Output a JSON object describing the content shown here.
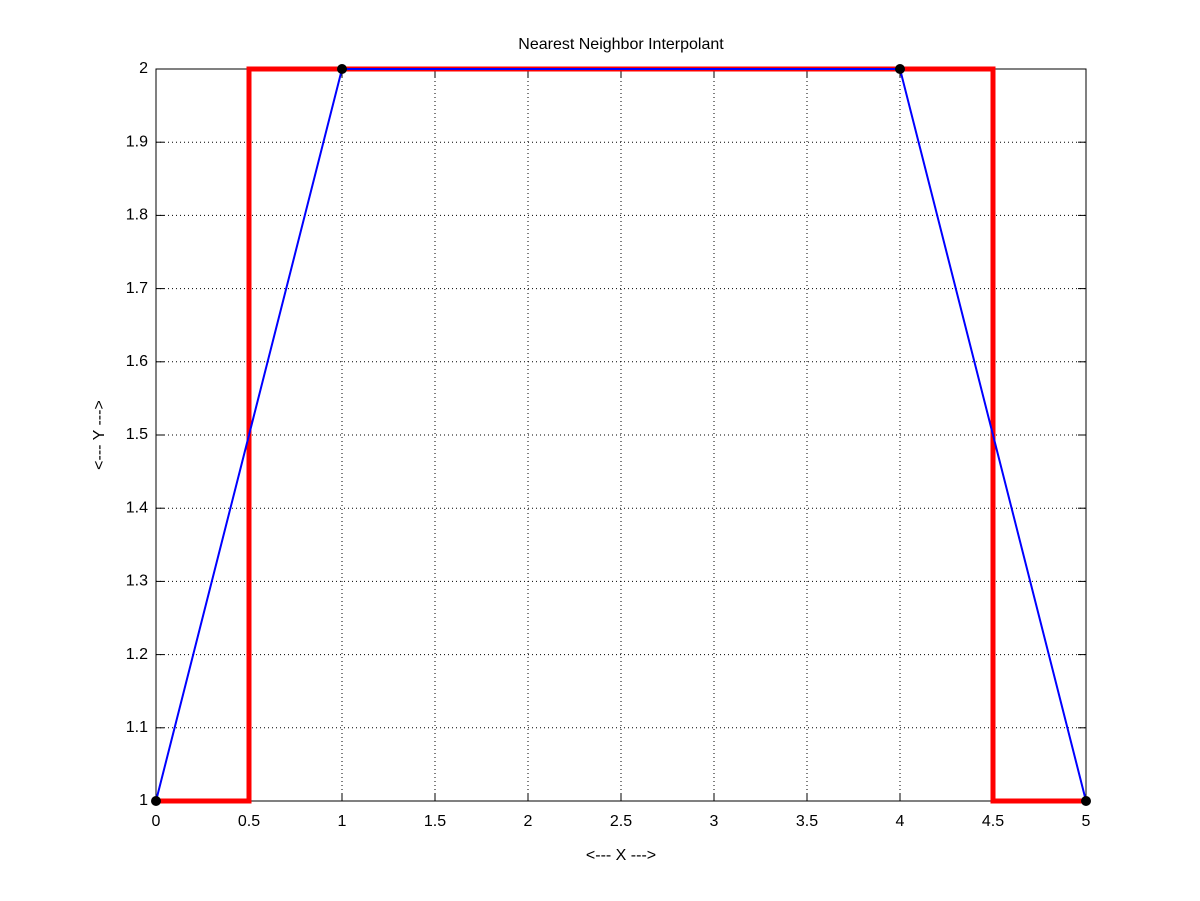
{
  "chart_data": {
    "type": "line",
    "title": "Nearest Neighbor Interpolant",
    "x_label": "<--- X --->",
    "y_label": "<--- Y --->",
    "xlim": [
      0,
      5
    ],
    "xticks": [
      0,
      0.5,
      1,
      1.5,
      2,
      2.5,
      3,
      3.5,
      4,
      4.5,
      5
    ],
    "ylim": [
      1,
      2
    ],
    "yticks": [
      1,
      1.1,
      1.2,
      1.3,
      1.4,
      1.5,
      1.6,
      1.7,
      1.8,
      1.9,
      2
    ],
    "grid": true,
    "series": [
      {
        "color": "#ff0000",
        "style": "thick",
        "x": [
          0,
          0.5,
          0.5,
          4.5,
          4.5,
          5
        ],
        "values": [
          1,
          1,
          2,
          2,
          1,
          1
        ]
      },
      {
        "color": "#0000ff",
        "style": "thin",
        "x": [
          0,
          1,
          4,
          5
        ],
        "values": [
          1,
          2,
          2,
          1
        ]
      },
      {
        "color": "#000000",
        "style": "markers",
        "x": [
          0,
          1,
          4,
          5
        ],
        "values": [
          1,
          2,
          2,
          1
        ]
      }
    ]
  }
}
